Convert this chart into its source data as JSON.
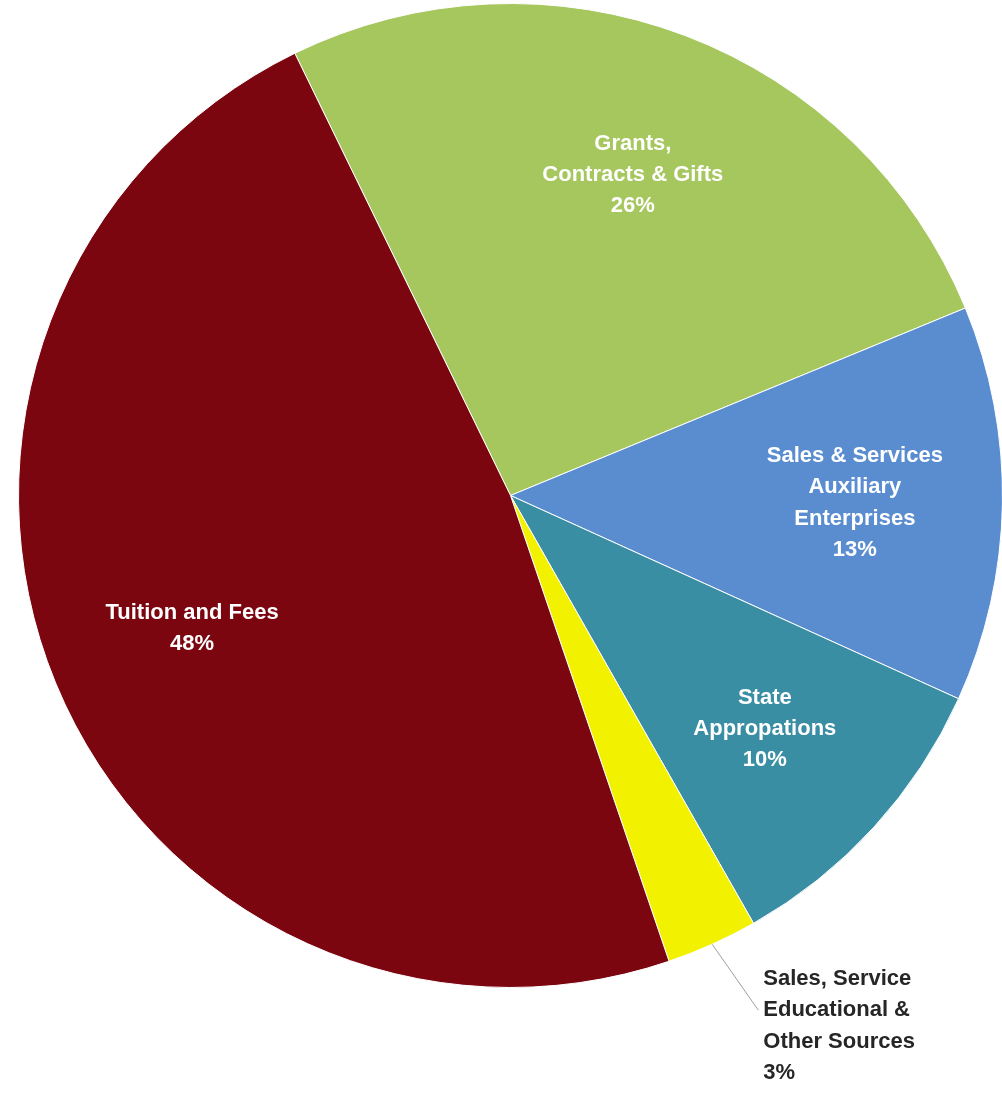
{
  "chart_data": {
    "type": "pie",
    "categories": [
      "Grants,\nContracts & Gifts",
      "Sales & Services\nAuxiliary\nEnterprises",
      "State\nAppropations",
      "Sales, Service\nEducational &\nOther Sources",
      "Tuition and Fees"
    ],
    "values": [
      26,
      13,
      10,
      3,
      48
    ],
    "value_labels": [
      "26%",
      "13%",
      "10%",
      "3%",
      "48%"
    ],
    "colors": [
      "#a6c65e",
      "#5a8dd0",
      "#3a8ea3",
      "#f2f200",
      "#7b0610"
    ]
  }
}
